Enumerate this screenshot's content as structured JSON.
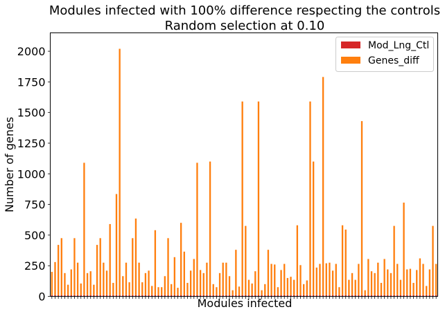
{
  "chart_data": {
    "type": "bar",
    "stacked": true,
    "title": [
      "Modules infected with 100% difference respecting the controls",
      "Random selection  at 0.10"
    ],
    "xlabel": "Modules infected",
    "ylabel": "Number of genes",
    "ylim": [
      0,
      2150
    ],
    "yticks": [
      0,
      250,
      500,
      750,
      1000,
      1250,
      1500,
      1750,
      2000
    ],
    "legend_position": "top-right",
    "grid": false,
    "series": [
      {
        "name": "Mod_Lng_Ctl",
        "color": "#d62728",
        "values": [
          10,
          10,
          10,
          10,
          10,
          10,
          10,
          10,
          10,
          10,
          10,
          10,
          10,
          10,
          10,
          10,
          10,
          10,
          10,
          10,
          10,
          10,
          10,
          10,
          10,
          10,
          10,
          10,
          10,
          10,
          10,
          10,
          10,
          10,
          10,
          10,
          10,
          10,
          10,
          10,
          10,
          10,
          10,
          10,
          10,
          10,
          10,
          10,
          10,
          10,
          10,
          10,
          10,
          10,
          10,
          10,
          10,
          10,
          10,
          10,
          10,
          10,
          10,
          10,
          10,
          10,
          10,
          10,
          10,
          10,
          10,
          10,
          10,
          10,
          10,
          10,
          10,
          10,
          10,
          10,
          10,
          10,
          10,
          10,
          10,
          10,
          10,
          10,
          10,
          10,
          10,
          10,
          10,
          10,
          10,
          10,
          10,
          10,
          10,
          10,
          10,
          10,
          10,
          10,
          10,
          10,
          10,
          10,
          10,
          10,
          10,
          10,
          10,
          10,
          10,
          10,
          10,
          10,
          10,
          10
        ]
      },
      {
        "name": "Genes_diff",
        "color": "#ff7f0e",
        "values": [
          190,
          270,
          410,
          465,
          180,
          85,
          210,
          465,
          265,
          95,
          1080,
          180,
          195,
          85,
          410,
          465,
          265,
          200,
          580,
          100,
          825,
          2010,
          155,
          265,
          105,
          465,
          625,
          265,
          105,
          180,
          200,
          75,
          530,
          65,
          65,
          155,
          465,
          90,
          310,
          60,
          590,
          355,
          100,
          200,
          295,
          1080,
          205,
          180,
          265,
          1090,
          90,
          65,
          180,
          265,
          265,
          155,
          40,
          370,
          70,
          1580,
          565,
          125,
          95,
          195,
          1580,
          40,
          90,
          370,
          255,
          250,
          65,
          205,
          255,
          140,
          150,
          125,
          570,
          245,
          90,
          120,
          1580,
          1090,
          225,
          255,
          1780,
          260,
          265,
          200,
          255,
          65,
          570,
          535,
          125,
          180,
          125,
          255,
          1420,
          40,
          295,
          195,
          180,
          265,
          100,
          295,
          210,
          180,
          565,
          255,
          125,
          755,
          210,
          215,
          100,
          205,
          300,
          255,
          75,
          210,
          565,
          255
        ]
      }
    ]
  }
}
